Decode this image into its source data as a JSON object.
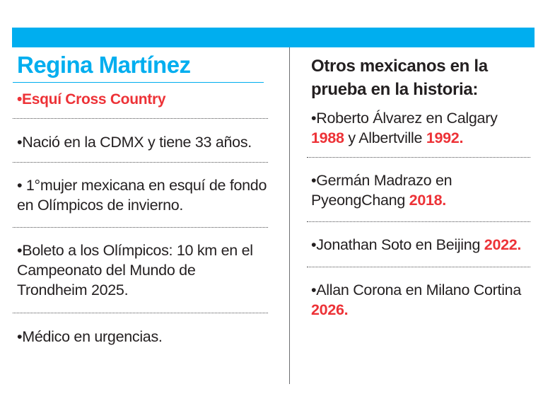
{
  "left": {
    "name": "Regina Martínez",
    "sport": "•Esquí Cross Country",
    "facts": [
      "•Nació en la CDMX y tiene 33 años.",
      "• 1°mujer mexicana en esquí de fondo en Olímpicos de invierno.",
      "•Boleto a los Olímpicos: 10 km en el Campeonato del Mundo de Trondheim 2025.",
      "•Médico en urgencias."
    ]
  },
  "right": {
    "title": "Otros mexicanos en la prueba en la historia:",
    "items": [
      {
        "text_a": "•Roberto Álvarez en Calgary",
        "year_a": "1988",
        "text_b": " y Albertville ",
        "year_b": "1992."
      },
      {
        "text_a": "•Germán Madrazo en PyeongChang ",
        "year_a": "2018."
      },
      {
        "text_a": "•Jonathan Soto en Beijing ",
        "year_a": "2022."
      },
      {
        "text_a": "•Allan Corona en Milano Cortina ",
        "year_a": "2026."
      }
    ]
  },
  "colors": {
    "accent_blue": "#00aeef",
    "accent_red": "#ed3237",
    "text": "#231f20"
  }
}
